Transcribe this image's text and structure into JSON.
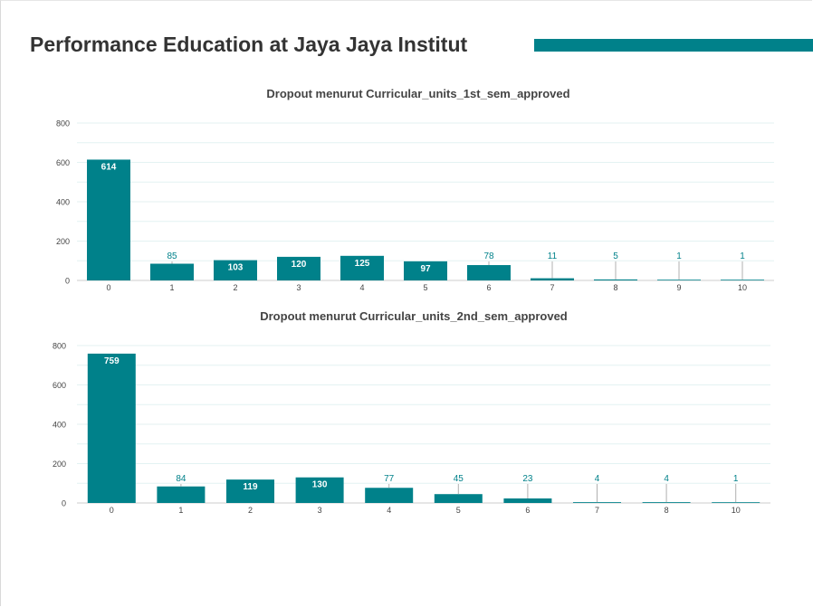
{
  "header": {
    "title": "Performance Education at Jaya Jaya Institut"
  },
  "colors": {
    "accent": "#00818a",
    "bar": "#00818a",
    "grid": "#e3f2f2",
    "axis": "#cccccc",
    "title_text": "#444444",
    "tick_text": "#444444",
    "label_inside": "#ffffff",
    "label_outside": "#00818a"
  },
  "chart_data": [
    {
      "type": "bar",
      "title": "Dropout menurut Curricular_units_1st_sem_approved",
      "xlabel": "",
      "ylabel": "",
      "categories": [
        "0",
        "1",
        "2",
        "3",
        "4",
        "5",
        "6",
        "7",
        "8",
        "9",
        "10"
      ],
      "values": [
        614,
        85,
        103,
        120,
        125,
        97,
        78,
        11,
        5,
        1,
        1
      ],
      "ylim": [
        0,
        800
      ],
      "yticks": [
        0,
        200,
        400,
        600,
        800
      ],
      "grid": true,
      "legend": "none"
    },
    {
      "type": "bar",
      "title": "Dropout menurut Curricular_units_2nd_sem_approved",
      "xlabel": "",
      "ylabel": "",
      "categories": [
        "0",
        "1",
        "2",
        "3",
        "4",
        "5",
        "6",
        "7",
        "8",
        "10"
      ],
      "values": [
        759,
        84,
        119,
        130,
        77,
        45,
        23,
        4,
        4,
        1
      ],
      "ylim": [
        0,
        800
      ],
      "yticks": [
        0,
        200,
        400,
        600,
        800
      ],
      "grid": true,
      "legend": "none"
    }
  ]
}
